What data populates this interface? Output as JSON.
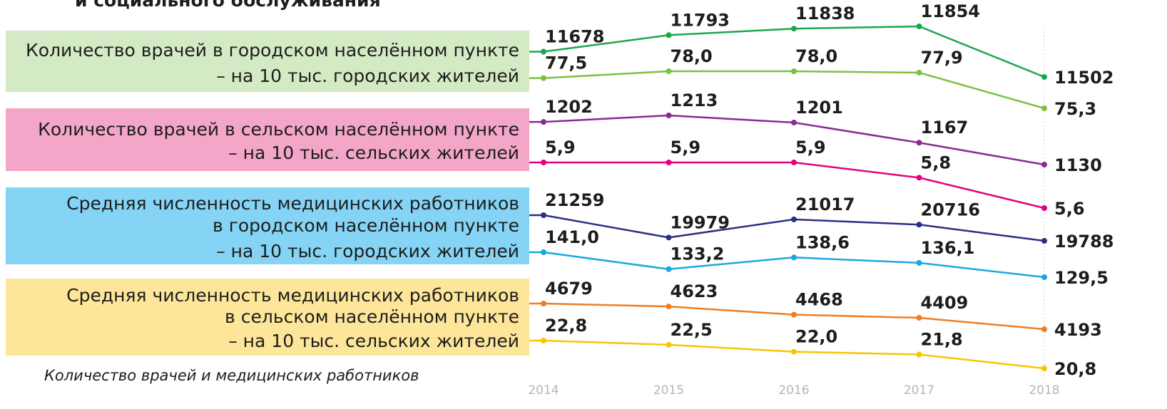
{
  "title": "и социального обслуживания",
  "footnote": "Количество врачей и медицинских работников",
  "x": [
    2014,
    2015,
    2016,
    2017,
    2018
  ],
  "groups": [
    {
      "color": "#d4eac5",
      "label": [
        "Количество врачей в городском населённом пункте",
        "– на 10 тыс. городских жителей"
      ],
      "series": [
        {
          "color": "#1aa84a",
          "values": [
            11678,
            11793,
            11838,
            11854,
            11502
          ]
        },
        {
          "color": "#7ac143",
          "values": [
            77.5,
            78,
            78,
            77.9,
            75.3
          ],
          "value_labels": [
            "77,5",
            "78,0",
            "78,0",
            "77,9",
            "75,3"
          ]
        }
      ]
    },
    {
      "color": "#f4a6c8",
      "label": [
        "Количество врачей в сельском населённом пункте",
        "– на 10 тыс. сельских жителей"
      ],
      "series": [
        {
          "color": "#8b2a94",
          "values": [
            1202,
            1213,
            1201,
            1167,
            1130
          ]
        },
        {
          "color": "#e6007e",
          "values": [
            5.9,
            5.9,
            5.9,
            5.8,
            5.6
          ],
          "value_labels": [
            "5,9",
            "5,9",
            "5,9",
            "5,8",
            "5,6"
          ]
        }
      ]
    },
    {
      "color": "#85d4f5",
      "label": [
        "Средняя численность медицинских работников",
        "в городском населённом пункте",
        "– на 10 тыс. городских жителей"
      ],
      "series": [
        {
          "color": "#2b2f86",
          "values": [
            21259,
            19979,
            21017,
            20716,
            19788
          ]
        },
        {
          "color": "#1ba7e0",
          "values": [
            141,
            133.2,
            138.6,
            136.1,
            129.5
          ],
          "value_labels": [
            "141,0",
            "133,2",
            "138,6",
            "136,1",
            "129,5"
          ]
        }
      ]
    },
    {
      "color": "#fde59a",
      "label": [
        "Средняя численность медицинских работников",
        "в сельском населённом пункте",
        "– на 10 тыс. сельских жителей"
      ],
      "series": [
        {
          "color": "#ef7d22",
          "values": [
            4679,
            4623,
            4468,
            4409,
            4193
          ]
        },
        {
          "color": "#f7c600",
          "values": [
            22.8,
            22.5,
            22,
            21.8,
            20.8
          ],
          "value_labels": [
            "22,8",
            "22,5",
            "22,0",
            "21,8",
            "20,8"
          ]
        }
      ]
    }
  ]
}
